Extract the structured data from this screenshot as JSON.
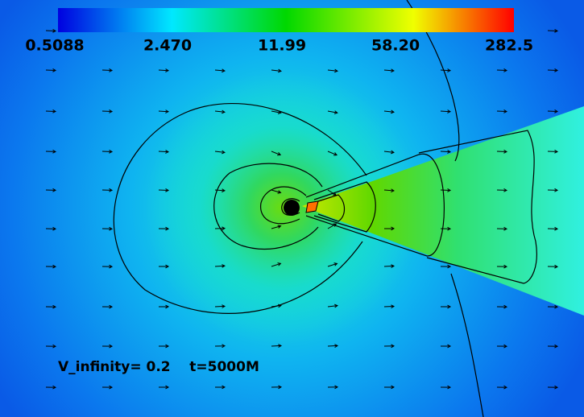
{
  "colorbar": {
    "ticks": [
      "0.5088",
      "2.470",
      "11.99",
      "58.20",
      "282.5"
    ]
  },
  "annotation": "V_infinity= 0.2    t=5000M"
}
